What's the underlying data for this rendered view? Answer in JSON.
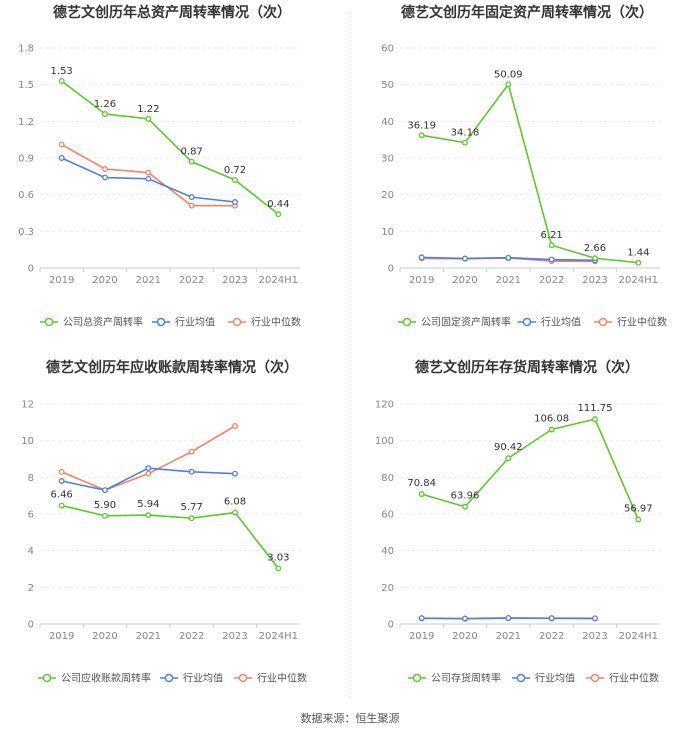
{
  "colors": {
    "company": "#5cc732",
    "industry_avg": "#4f7fe0",
    "industry_median": "#f08462"
  },
  "source": "数据来源：恒生聚源",
  "chart_data": [
    {
      "type": "line",
      "title": "德艺文创历年总资产周转率情况（次）",
      "categories": [
        "2019",
        "2020",
        "2021",
        "2022",
        "2023",
        "2024H1"
      ],
      "ylim": [
        0,
        1.8
      ],
      "yticks": [
        "0",
        "0.3",
        "0.6",
        "0.9",
        "1.2",
        "1.5",
        "1.8"
      ],
      "series": [
        {
          "name": "公司总资产周转率",
          "values": [
            1.53,
            1.26,
            1.22,
            0.87,
            0.72,
            0.44
          ],
          "labels": [
            "1.53",
            "1.26",
            "1.22",
            "0.87",
            "0.72",
            "0.44"
          ]
        },
        {
          "name": "行业均值",
          "values": [
            0.9,
            0.74,
            0.73,
            0.58,
            0.54,
            null
          ]
        },
        {
          "name": "行业中位数",
          "values": [
            1.01,
            0.81,
            0.78,
            0.51,
            0.51,
            null
          ]
        }
      ]
    },
    {
      "type": "line",
      "title": "德艺文创历年固定资产周转率情况（次）",
      "categories": [
        "2019",
        "2020",
        "2021",
        "2022",
        "2023",
        "2024H1"
      ],
      "ylim": [
        0,
        60
      ],
      "yticks": [
        "0",
        "10",
        "20",
        "30",
        "40",
        "50",
        "60"
      ],
      "series": [
        {
          "name": "公司固定资产周转率",
          "values": [
            36.19,
            34.18,
            50.09,
            6.21,
            2.66,
            1.44
          ],
          "labels": [
            "36.19",
            "34.18",
            "50.09",
            "6.21",
            "2.66",
            "1.44"
          ]
        },
        {
          "name": "行业均值",
          "values": [
            2.9,
            2.6,
            2.8,
            2.3,
            2.1,
            null
          ]
        },
        {
          "name": "行业中位数",
          "values": [
            2.6,
            2.5,
            2.7,
            1.9,
            1.8,
            null
          ]
        }
      ]
    },
    {
      "type": "line",
      "title": "德艺文创历年应收账款周转率情况（次）",
      "categories": [
        "2019",
        "2020",
        "2021",
        "2022",
        "2023",
        "2024H1"
      ],
      "ylim": [
        0,
        12
      ],
      "yticks": [
        "0",
        "2",
        "4",
        "6",
        "8",
        "10",
        "12"
      ],
      "series": [
        {
          "name": "公司应收账款周转率",
          "values": [
            6.46,
            5.9,
            5.94,
            5.77,
            6.08,
            3.03
          ],
          "labels": [
            "6.46",
            "5.90",
            "5.94",
            "5.77",
            "6.08",
            "3.03"
          ]
        },
        {
          "name": "行业均值",
          "values": [
            7.8,
            7.3,
            8.5,
            8.3,
            8.2,
            null
          ]
        },
        {
          "name": "行业中位数",
          "values": [
            8.3,
            7.3,
            8.2,
            9.4,
            10.8,
            null
          ]
        }
      ]
    },
    {
      "type": "line",
      "title": "德艺文创历年存货周转率情况（次）",
      "categories": [
        "2019",
        "2020",
        "2021",
        "2022",
        "2023",
        "2024H1"
      ],
      "ylim": [
        0,
        120
      ],
      "yticks": [
        "0",
        "20",
        "40",
        "60",
        "80",
        "100",
        "120"
      ],
      "series": [
        {
          "name": "公司存货周转率",
          "values": [
            70.84,
            63.96,
            90.42,
            106.08,
            111.75,
            56.97
          ],
          "labels": [
            "70.84",
            "63.96",
            "90.42",
            "106.08",
            "111.75",
            "56.97"
          ]
        },
        {
          "name": "行业均值",
          "values": [
            3.2,
            3.0,
            3.3,
            3.2,
            3.1,
            null
          ]
        },
        {
          "name": "行业中位数",
          "values": [
            3.0,
            2.8,
            3.1,
            3.0,
            2.9,
            null
          ]
        }
      ]
    }
  ]
}
